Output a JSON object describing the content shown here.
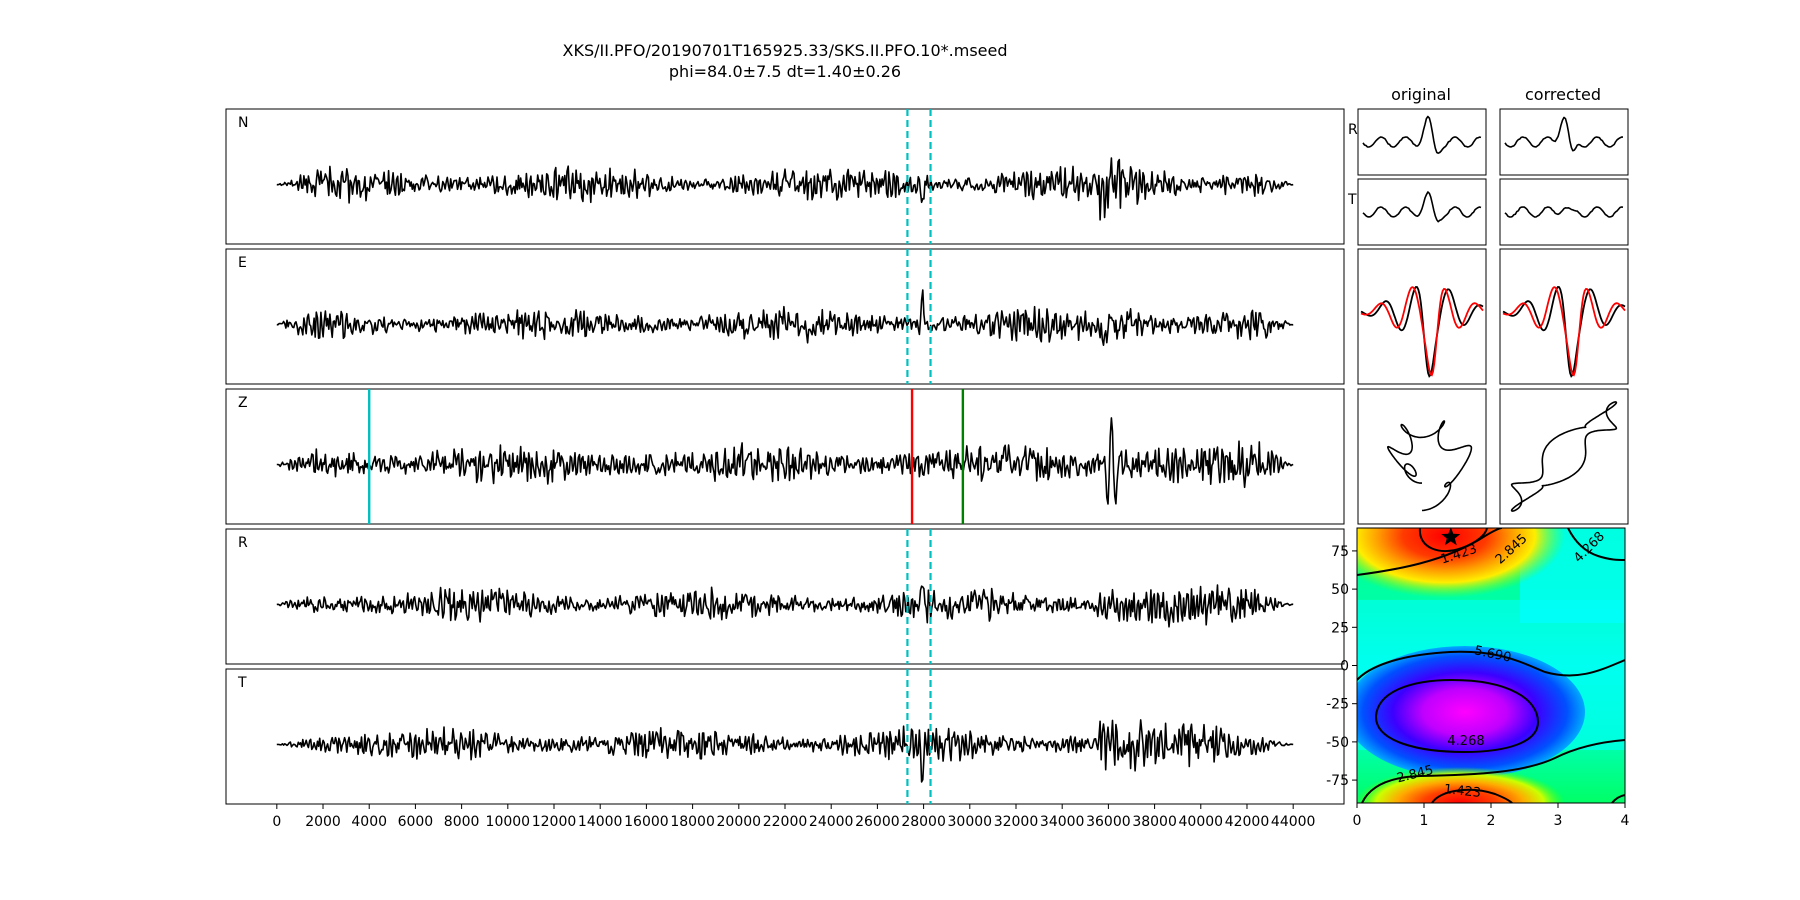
{
  "title": {
    "line1": "XKS/II.PFO/20190701T165925.33/SKS.II.PFO.10*.mseed",
    "line2": "phi=84.0±7.5 dt=1.40±0.26"
  },
  "column_titles": {
    "original": "original",
    "corrected": "corrected"
  },
  "chart_data": [
    {
      "type": "line",
      "description_role": "waveform traces",
      "channels": [
        "N",
        "E",
        "Z",
        "R",
        "T"
      ],
      "x_ticks": [
        0,
        2000,
        4000,
        6000,
        8000,
        10000,
        12000,
        14000,
        16000,
        18000,
        20000,
        22000,
        24000,
        26000,
        28000,
        30000,
        32000,
        34000,
        36000,
        38000,
        40000,
        42000,
        44000
      ],
      "xlim": [
        -2200,
        46200
      ],
      "data_range": [
        0,
        44000
      ],
      "window_lines": {
        "color": "#00bfbf",
        "style": "dashed",
        "x": [
          27300,
          28300
        ],
        "channels": [
          "N",
          "E",
          "R",
          "T"
        ]
      },
      "phase_markers": [
        {
          "channel": "Z",
          "x": 4000,
          "color": "#00bfbf"
        },
        {
          "channel": "Z",
          "x": 27500,
          "color": "#ff0000"
        },
        {
          "channel": "Z",
          "x": 29700,
          "color": "#008000"
        }
      ],
      "high_amplitude_window": [
        35500,
        44000
      ]
    },
    {
      "type": "line",
      "description_role": "particle motion and component comparison insets",
      "row_labels": [
        "R",
        "T"
      ],
      "columns": [
        "original",
        "corrected"
      ],
      "overlay_colors": [
        "#000000",
        "#ff0000"
      ]
    },
    {
      "type": "heatmap",
      "description_role": "error surface",
      "x_ticks": [
        0,
        1,
        2,
        3,
        4
      ],
      "y_ticks": [
        75,
        50,
        25,
        0,
        -25,
        -50,
        -75
      ],
      "xlim": [
        0,
        4
      ],
      "ylim": [
        -90,
        90
      ],
      "contour_labels": [
        "1.423",
        "2.845",
        "4.268",
        "5.690",
        "4.268",
        "2.845",
        "1.423"
      ],
      "minimum_marker": {
        "x": 1.4,
        "y": 84.0,
        "symbol": "star"
      },
      "colormap": "hsv"
    }
  ]
}
